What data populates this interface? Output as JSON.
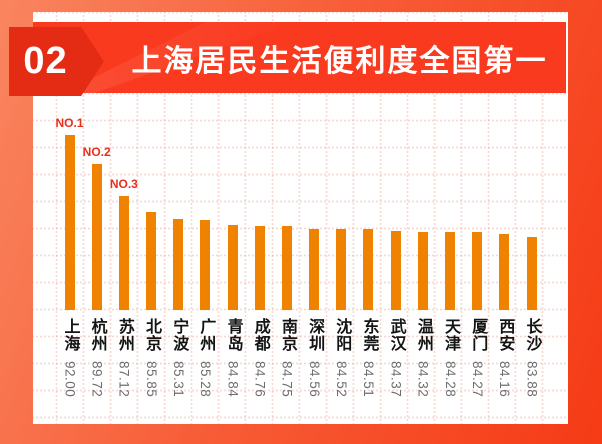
{
  "header": {
    "badge": "02",
    "title": "上海居民生活便利度全国第一"
  },
  "chart_data": {
    "type": "bar",
    "title": "上海居民生活便利度全国第一",
    "categories": [
      "上海",
      "杭州",
      "苏州",
      "北京",
      "宁波",
      "广州",
      "青岛",
      "成都",
      "南京",
      "深圳",
      "沈阳",
      "东莞",
      "武汉",
      "温州",
      "天津",
      "厦门",
      "西安",
      "长沙"
    ],
    "values": [
      92.0,
      89.72,
      87.12,
      85.85,
      85.31,
      85.28,
      84.84,
      84.76,
      84.75,
      84.56,
      84.52,
      84.51,
      84.37,
      84.32,
      84.28,
      84.27,
      84.16,
      83.88
    ],
    "value_labels": [
      "92.00",
      "89.72",
      "87.12",
      "85.85",
      "85.31",
      "85.28",
      "84.84",
      "84.76",
      "84.75",
      "84.56",
      "84.52",
      "84.51",
      "84.37",
      "84.32",
      "84.28",
      "84.27",
      "84.16",
      "83.88"
    ],
    "rank_annotations": [
      "NO.1",
      "NO.2",
      "NO.3"
    ],
    "xlabel": "",
    "ylabel": "",
    "ylim": [
      78,
      93
    ],
    "grid": true,
    "legend": false,
    "bar_color": "#EF8200",
    "annotation_color": "#E8301B",
    "label_color": "#141414",
    "value_color": "#6E6E6E"
  },
  "colors": {
    "background_gradient_start": "#F9855F",
    "background_gradient_end": "#F53B16",
    "card": "#FFFFFF",
    "banner": "#FA3A1F",
    "badge": "#E42C15",
    "title_text": "#FFFFFF"
  }
}
